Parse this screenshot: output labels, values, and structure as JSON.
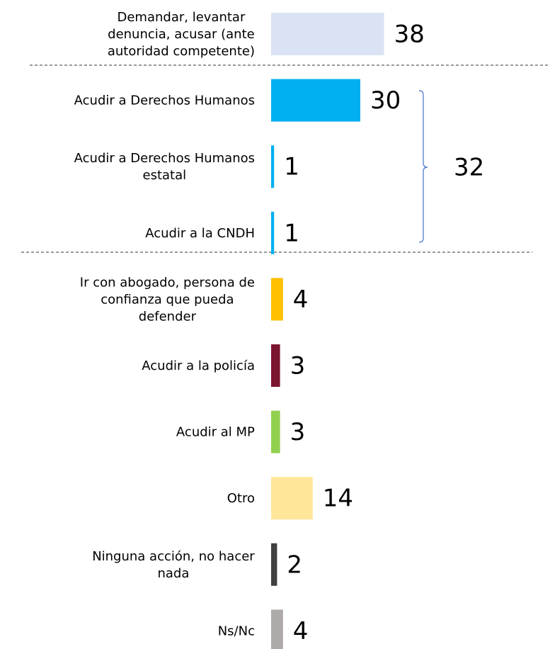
{
  "chart_data": {
    "type": "bar",
    "orientation": "horizontal",
    "categories": [
      [
        "Demandar, levantar",
        "denuncia, acusar (ante",
        "autoridad competente)"
      ],
      [
        "Acudir a Derechos Humanos"
      ],
      [
        "Acudir a Derechos Humanos",
        "estatal"
      ],
      [
        "Acudir a la CNDH"
      ],
      [
        "Ir con abogado, persona de",
        "confianza que pueda",
        "defender"
      ],
      [
        "Acudir a la policía"
      ],
      [
        "Acudir al MP"
      ],
      [
        "Otro"
      ],
      [
        "Ninguna acción, no hacer",
        "nada"
      ],
      [
        "Ns/Nc"
      ]
    ],
    "values": [
      38,
      30,
      1,
      1,
      4,
      3,
      3,
      14,
      2,
      4
    ],
    "colors": [
      "#dae3f3",
      "#00b0f0",
      "#00b0f0",
      "#00b0f0",
      "#ffc000",
      "#7b1530",
      "#92d050",
      "#ffe699",
      "#404040",
      "#aeaaaa"
    ],
    "bracket": {
      "text": "32"
    }
  }
}
